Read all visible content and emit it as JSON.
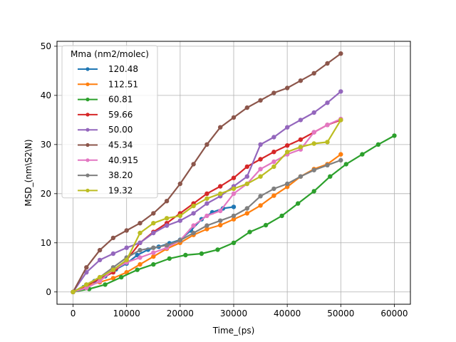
{
  "chart_data": {
    "type": "line",
    "title": "",
    "xlabel": "Time_(ps)",
    "ylabel": "MSD_(nm\\S2\\N)",
    "xlim": [
      -3000,
      63000
    ],
    "ylim": [
      -2.5,
      51
    ],
    "xticks": [
      0,
      10000,
      20000,
      30000,
      40000,
      50000,
      60000
    ],
    "yticks": [
      0,
      10,
      20,
      30,
      40,
      50
    ],
    "grid": true,
    "legend": {
      "title": "Mma (nm2/molec)",
      "position": "top-left"
    },
    "series": [
      {
        "name": "120.48",
        "color": "#1f77b4",
        "x": [
          0,
          2000,
          4000,
          6000,
          8000,
          10000,
          12000,
          14000,
          16000,
          18000,
          20000,
          22000,
          24000,
          26000,
          28000,
          30000
        ],
        "y": [
          0,
          1.0,
          2.2,
          3.2,
          4.6,
          5.8,
          7.5,
          8.6,
          9.2,
          9.9,
          10.6,
          12.5,
          14.8,
          16.2,
          17.0,
          17.3
        ]
      },
      {
        "name": "112.51",
        "color": "#ff7f0e",
        "x": [
          0,
          2500,
          5000,
          7500,
          10000,
          12500,
          15000,
          17500,
          20000,
          22500,
          25000,
          27500,
          30000,
          32500,
          35000,
          37500,
          40000,
          42500,
          45000,
          47500,
          50000
        ],
        "y": [
          0,
          1.2,
          2.0,
          2.8,
          4.0,
          5.6,
          7.2,
          8.8,
          10.0,
          11.6,
          12.8,
          13.6,
          14.8,
          16.0,
          17.6,
          19.6,
          21.4,
          23.5,
          25.0,
          26.0,
          28.0
        ]
      },
      {
        "name": "60.81",
        "color": "#2ca02c",
        "x": [
          0,
          3000,
          6000,
          9000,
          12000,
          15000,
          18000,
          21000,
          24000,
          27000,
          30000,
          33000,
          36000,
          39000,
          42000,
          45000,
          48000,
          51000,
          54000,
          57000,
          60000
        ],
        "y": [
          0,
          0.6,
          1.5,
          3.0,
          4.5,
          5.6,
          6.8,
          7.5,
          7.8,
          8.6,
          10.0,
          12.2,
          13.6,
          15.5,
          18.0,
          20.5,
          23.5,
          26.0,
          28.0,
          30.0,
          31.8
        ]
      },
      {
        "name": "59.66",
        "color": "#d62728",
        "x": [
          0,
          2500,
          5000,
          7500,
          10000,
          12500,
          15000,
          17500,
          20000,
          22500,
          25000,
          27500,
          30000,
          32500,
          35000,
          37500,
          40000,
          42500,
          45000,
          47500,
          50000
        ],
        "y": [
          0,
          1.4,
          2.6,
          4.0,
          6.5,
          10.0,
          12.2,
          14.0,
          16.0,
          18.0,
          20.0,
          21.5,
          23.2,
          25.5,
          27.0,
          28.5,
          29.8,
          31.0,
          32.5,
          34.0,
          35.0
        ]
      },
      {
        "name": "50.00",
        "color": "#9467bd",
        "x": [
          0,
          2500,
          5000,
          7500,
          10000,
          12500,
          15000,
          17500,
          20000,
          22500,
          25000,
          27500,
          30000,
          32500,
          35000,
          37500,
          40000,
          42500,
          45000,
          47500,
          50000
        ],
        "y": [
          0,
          4.0,
          6.5,
          7.8,
          9.0,
          10.0,
          12.0,
          13.5,
          14.5,
          16.0,
          18.0,
          19.5,
          21.5,
          23.5,
          30.0,
          31.5,
          33.5,
          35.0,
          36.5,
          38.5,
          40.8
        ]
      },
      {
        "name": "45.34",
        "color": "#8c564b",
        "x": [
          0,
          2500,
          5000,
          7500,
          10000,
          12500,
          15000,
          17500,
          20000,
          22500,
          25000,
          27500,
          30000,
          32500,
          35000,
          37500,
          40000,
          42500,
          45000,
          47500,
          50000
        ],
        "y": [
          0,
          5.0,
          8.5,
          11.0,
          12.5,
          14.0,
          16.0,
          18.5,
          22.0,
          26.0,
          30.0,
          33.5,
          35.5,
          37.5,
          39.0,
          40.5,
          41.5,
          43.0,
          44.5,
          46.5,
          48.5
        ]
      },
      {
        "name": "40.915",
        "color": "#e377c2",
        "x": [
          0,
          2500,
          5000,
          7500,
          10000,
          12500,
          15000,
          17500,
          20000,
          22500,
          25000,
          27500,
          30000,
          32500,
          35000,
          37500,
          40000,
          42500,
          45000,
          47500,
          50000
        ],
        "y": [
          0,
          0.8,
          2.2,
          4.5,
          6.0,
          7.0,
          8.0,
          9.0,
          10.5,
          13.5,
          15.5,
          16.5,
          20.0,
          22.0,
          25.0,
          26.5,
          28.0,
          29.0,
          32.5,
          34.0,
          35.2
        ]
      },
      {
        "name": "38.20",
        "color": "#7f7f7f",
        "x": [
          0,
          2500,
          5000,
          7500,
          10000,
          12500,
          15000,
          17500,
          20000,
          22500,
          25000,
          27500,
          30000,
          32500,
          35000,
          37500,
          40000,
          42500,
          45000,
          47500,
          50000
        ],
        "y": [
          0,
          1.5,
          3.0,
          5.0,
          7.0,
          8.5,
          9.0,
          9.5,
          10.5,
          12.0,
          13.5,
          14.5,
          15.5,
          17.0,
          19.5,
          21.0,
          22.0,
          23.5,
          24.8,
          25.8,
          26.8
        ]
      },
      {
        "name": "19.32",
        "color": "#bcbd22",
        "x": [
          0,
          2500,
          5000,
          7500,
          10000,
          12500,
          15000,
          17500,
          20000,
          22500,
          25000,
          27500,
          30000,
          32500,
          35000,
          37500,
          40000,
          42500,
          45000,
          47500,
          50000
        ],
        "y": [
          0,
          1.5,
          3.0,
          4.5,
          6.5,
          12.0,
          14.0,
          15.0,
          15.5,
          17.5,
          19.0,
          20.0,
          21.0,
          22.0,
          23.5,
          25.5,
          28.5,
          29.5,
          30.2,
          30.5,
          35.0
        ]
      }
    ]
  }
}
